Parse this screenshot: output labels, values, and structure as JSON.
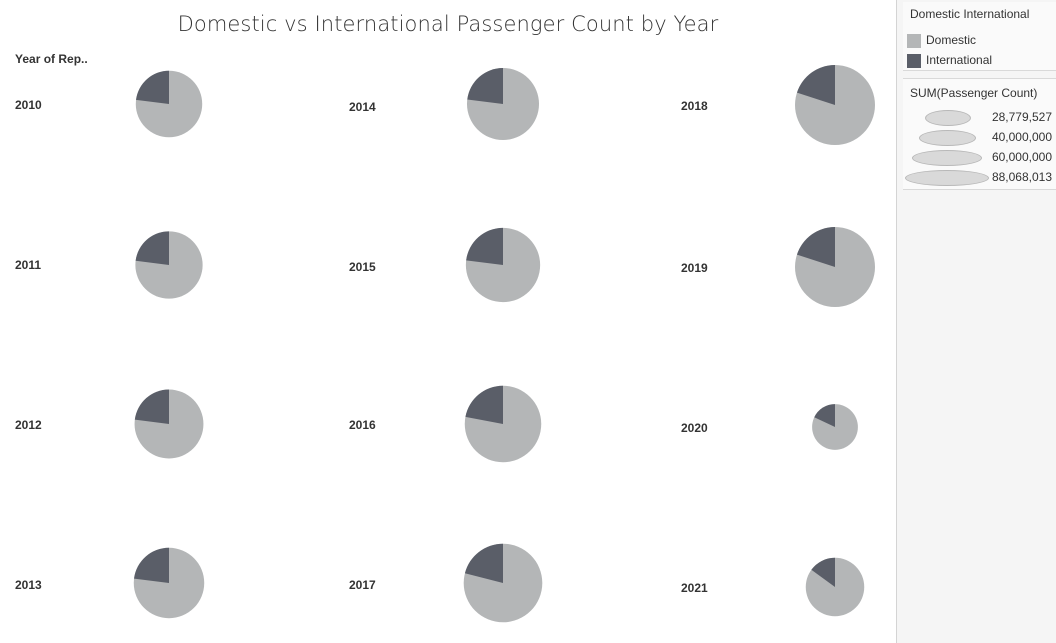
{
  "title": "Domestic vs International Passenger Count by Year",
  "row_header": "Year of Rep..",
  "colors": {
    "domestic": "#b4b6b7",
    "international": "#5a5e68"
  },
  "legend": {
    "title": "Domestic International",
    "items": [
      {
        "label": "Domestic"
      },
      {
        "label": "International"
      }
    ]
  },
  "size_legend": {
    "title": "SUM(Passenger Count)",
    "items": [
      {
        "label": "28,779,527",
        "value": 28779527
      },
      {
        "label": "40,000,000",
        "value": 40000000
      },
      {
        "label": "60,000,000",
        "value": 60000000
      },
      {
        "label": "88,068,013",
        "value": 88068013
      }
    ]
  },
  "chart_data": {
    "type": "pie",
    "title": "Domestic vs International Passenger Count by Year",
    "series_names": [
      "Domestic",
      "International"
    ],
    "size_measure": "SUM(Passenger Count)",
    "pies": [
      {
        "year": "2010",
        "total": 40000000,
        "international_share": 0.23
      },
      {
        "year": "2011",
        "total": 41000000,
        "international_share": 0.23
      },
      {
        "year": "2012",
        "total": 43000000,
        "international_share": 0.23
      },
      {
        "year": "2013",
        "total": 45000000,
        "international_share": 0.23
      },
      {
        "year": "2014",
        "total": 47000000,
        "international_share": 0.23
      },
      {
        "year": "2015",
        "total": 50000000,
        "international_share": 0.23
      },
      {
        "year": "2016",
        "total": 53000000,
        "international_share": 0.22
      },
      {
        "year": "2017",
        "total": 56000000,
        "international_share": 0.21
      },
      {
        "year": "2018",
        "total": 58000000,
        "international_share": 0.2
      },
      {
        "year": "2019",
        "total": 58000000,
        "international_share": 0.2
      },
      {
        "year": "2020",
        "total": 19000000,
        "international_share": 0.18
      },
      {
        "year": "2021",
        "total": 31000000,
        "international_share": 0.15
      }
    ]
  }
}
